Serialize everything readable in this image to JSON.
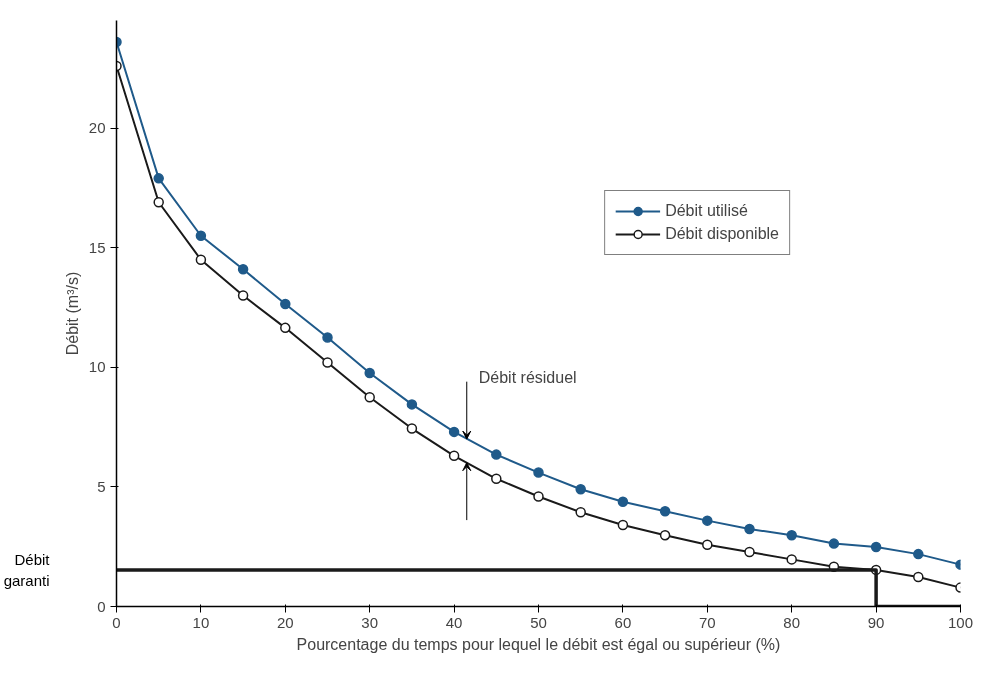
{
  "chart_data": {
    "type": "line",
    "xlabel": "Pourcentage du temps pour lequel le débit est égal ou supérieur (%)",
    "ylabel": "Débit (m³/s)",
    "x": [
      0,
      5,
      10,
      15,
      20,
      25,
      30,
      35,
      40,
      45,
      50,
      55,
      60,
      65,
      70,
      75,
      80,
      85,
      90,
      95,
      100
    ],
    "series": [
      {
        "name": "Débit utilisé",
        "color": "#1f5a8a",
        "marker": "circle",
        "values": [
          23.6,
          17.9,
          15.5,
          14.1,
          12.65,
          11.25,
          9.76,
          8.45,
          7.3,
          6.35,
          5.6,
          4.9,
          4.38,
          3.98,
          3.59,
          3.24,
          2.98,
          2.63,
          2.49,
          2.19,
          1.75
        ]
      },
      {
        "name": "Débit disponible",
        "color": "#1a1a1a",
        "marker": "circle",
        "values": [
          22.6,
          16.9,
          14.5,
          13.0,
          11.65,
          10.2,
          8.75,
          7.44,
          6.3,
          5.34,
          4.6,
          3.94,
          3.41,
          2.98,
          2.58,
          2.28,
          1.97,
          1.66,
          1.53,
          1.23,
          0.79
        ]
      },
      {
        "name": "Débit garanti",
        "color": "#1a1a1a",
        "marker": "none",
        "x": [
          0,
          90,
          90,
          100
        ],
        "values": [
          1.53,
          1.53,
          0,
          0
        ]
      }
    ],
    "annotations": [
      {
        "text": "Débit résiduel",
        "x": 41.5,
        "y": 7.0
      }
    ],
    "xlim": [
      0,
      100
    ],
    "xticks": [
      0,
      10,
      20,
      30,
      40,
      50,
      60,
      70,
      80,
      90,
      100
    ],
    "ylim": [
      0,
      24.5
    ],
    "yticks": [
      0,
      5,
      10,
      15,
      20
    ],
    "grid": false,
    "legend": "top right"
  }
}
